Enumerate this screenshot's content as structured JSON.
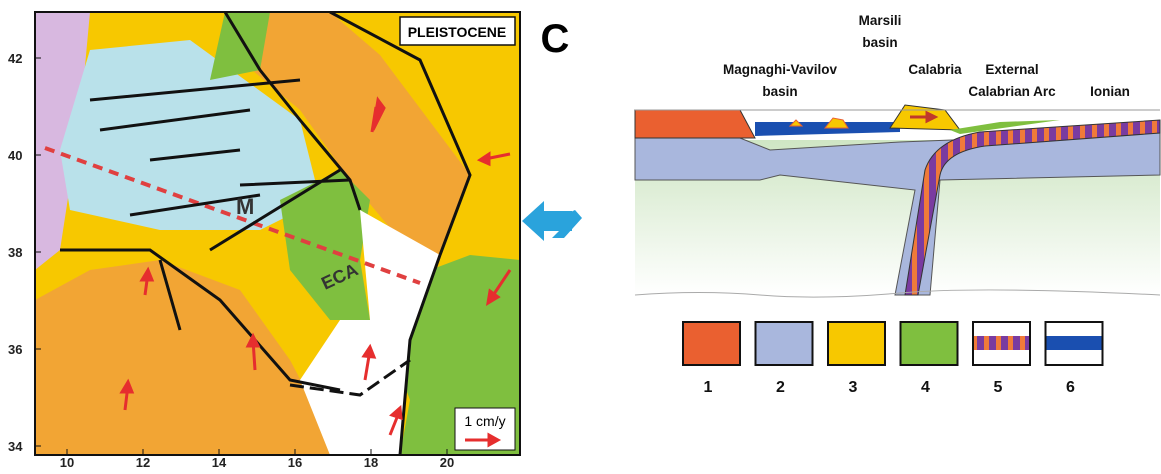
{
  "map": {
    "title": "PLEISTOCENE",
    "panel_letter": "C",
    "yticks": [
      42,
      40,
      38,
      36,
      34
    ],
    "xticks": [
      10,
      12,
      14,
      16,
      18,
      20
    ],
    "region_labels": [
      "M",
      "ECA"
    ],
    "scale_label": "1 cm/y"
  },
  "section": {
    "labels": [
      {
        "lines": [
          "Marsili",
          "basin"
        ]
      },
      {
        "lines": [
          "Magnaghi-Vavilov",
          "basin"
        ]
      },
      {
        "lines": [
          "Calabria"
        ]
      },
      {
        "lines": [
          "External",
          "Calabrian Arc"
        ]
      },
      {
        "lines": [
          "Ionian"
        ]
      }
    ],
    "legend": [
      "1",
      "2",
      "3",
      "4",
      "5",
      "6"
    ]
  }
}
